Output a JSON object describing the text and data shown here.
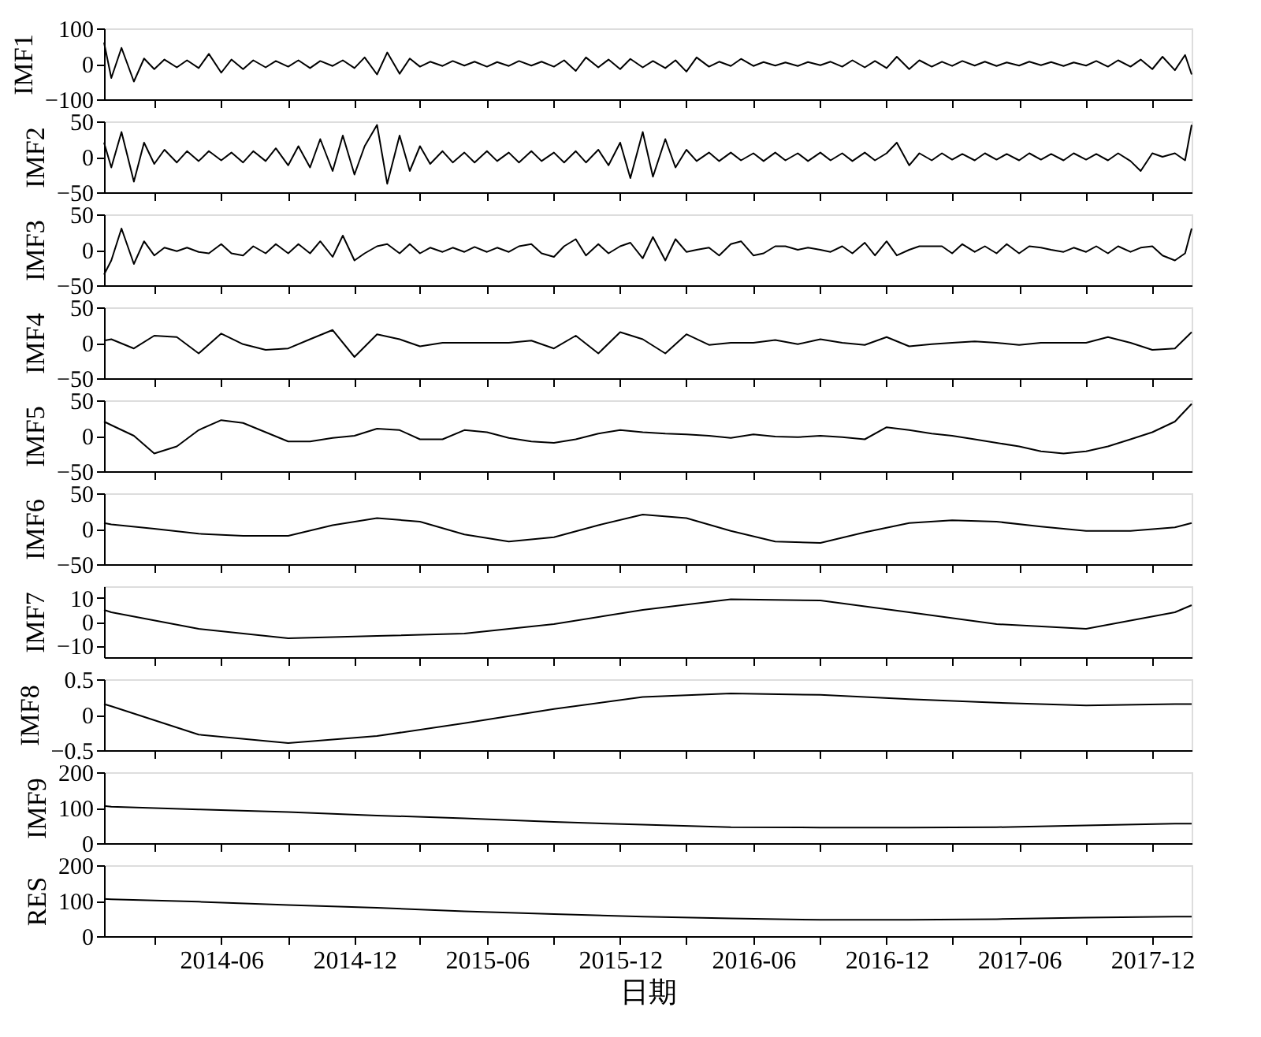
{
  "chart_data": [
    {
      "type": "line",
      "ylabel": "IMF1",
      "tick_labels": "y",
      "xlim": [
        "2013-12-22",
        "2018-01-24"
      ],
      "xticks": [
        {
          "value": "2014-03",
          "label": null
        },
        "2014-06",
        {
          "value": "2014-09",
          "label": null
        },
        "2014-12",
        {
          "value": "2015-03",
          "label": null
        },
        "2015-06",
        {
          "value": "2015-09",
          "label": null
        },
        "2015-12",
        {
          "value": "2016-03",
          "label": null
        },
        "2016-06",
        {
          "value": "2016-09",
          "label": null
        },
        "2016-12",
        {
          "value": "2017-03",
          "label": null
        },
        "2017-06",
        {
          "value": "2017-09",
          "label": null
        },
        "2017-12"
      ],
      "ylim": [
        -100,
        100
      ],
      "yticks": [
        -100,
        0,
        100
      ],
      "x": [
        "2013-12-22",
        "2014-01-01",
        "2014-01-15",
        "2014-02-01",
        "2014-02-15",
        "2014-03-01",
        "2014-03-15",
        "2014-04-01",
        "2014-04-15",
        "2014-05-01",
        "2014-05-15",
        "2014-06-01",
        "2014-06-15",
        "2014-07-01",
        "2014-07-15",
        "2014-08-01",
        "2014-08-15",
        "2014-09-01",
        "2014-09-15",
        "2014-10-01",
        "2014-10-15",
        "2014-11-01",
        "2014-11-15",
        "2014-12-01",
        "2014-12-15",
        "2015-01-01",
        "2015-01-15",
        "2015-02-01",
        "2015-02-15",
        "2015-03-01",
        "2015-03-15",
        "2015-04-01",
        "2015-04-15",
        "2015-05-01",
        "2015-05-15",
        "2015-06-01",
        "2015-06-15",
        "2015-07-01",
        "2015-07-15",
        "2015-08-01",
        "2015-08-15",
        "2015-09-01",
        "2015-09-15",
        "2015-10-01",
        "2015-10-15",
        "2015-11-01",
        "2015-11-15",
        "2015-12-01",
        "2015-12-15",
        "2016-01-01",
        "2016-01-15",
        "2016-02-01",
        "2016-02-15",
        "2016-03-01",
        "2016-03-15",
        "2016-04-01",
        "2016-04-15",
        "2016-05-01",
        "2016-05-15",
        "2016-06-01",
        "2016-06-15",
        "2016-07-01",
        "2016-07-15",
        "2016-08-01",
        "2016-08-15",
        "2016-09-01",
        "2016-09-15",
        "2016-10-01",
        "2016-10-15",
        "2016-11-01",
        "2016-11-15",
        "2016-12-01",
        "2016-12-15",
        "2017-01-01",
        "2017-01-15",
        "2017-02-01",
        "2017-02-15",
        "2017-03-01",
        "2017-03-15",
        "2017-04-01",
        "2017-04-15",
        "2017-05-01",
        "2017-05-15",
        "2017-06-01",
        "2017-06-15",
        "2017-07-01",
        "2017-07-15",
        "2017-08-01",
        "2017-08-15",
        "2017-09-01",
        "2017-09-15",
        "2017-10-01",
        "2017-10-15",
        "2017-11-01",
        "2017-11-15",
        "2017-12-01",
        "2017-12-15",
        "2018-01-01",
        "2018-01-15",
        "2018-01-24"
      ],
      "series": [
        {
          "color": "#000000",
          "values": [
            60,
            -40,
            45,
            -50,
            15,
            -15,
            12,
            -10,
            10,
            -12,
            28,
            -25,
            12,
            -15,
            10,
            -10,
            8,
            -8,
            10,
            -12,
            8,
            -6,
            10,
            -12,
            18,
            -30,
            32,
            -28,
            15,
            -8,
            6,
            -6,
            8,
            -5,
            6,
            -8,
            5,
            -6,
            8,
            -5,
            6,
            -8,
            10,
            -20,
            18,
            -10,
            12,
            -15,
            14,
            -10,
            8,
            -12,
            10,
            -22,
            18,
            -8,
            6,
            -6,
            14,
            -6,
            5,
            -5,
            4,
            -6,
            5,
            -4,
            6,
            -8,
            10,
            -10,
            8,
            -12,
            20,
            -15,
            10,
            -8,
            6,
            -6,
            8,
            -5,
            6,
            -6,
            4,
            -5,
            6,
            -4,
            5,
            -6,
            4,
            -5,
            8,
            -8,
            10,
            -8,
            12,
            -15,
            20,
            -18,
            25,
            -30
          ]
        }
      ]
    },
    {
      "type": "line",
      "ylabel": "IMF2",
      "tick_labels": "y",
      "xlim": [
        "2013-12-22",
        "2018-01-24"
      ],
      "xticks": [
        {
          "value": "2014-03",
          "label": null
        },
        "2014-06",
        {
          "value": "2014-09",
          "label": null
        },
        "2014-12",
        {
          "value": "2015-03",
          "label": null
        },
        "2015-06",
        {
          "value": "2015-09",
          "label": null
        },
        "2015-12",
        {
          "value": "2016-03",
          "label": null
        },
        "2016-06",
        {
          "value": "2016-09",
          "label": null
        },
        "2016-12",
        {
          "value": "2017-03",
          "label": null
        },
        "2017-06",
        {
          "value": "2017-09",
          "label": null
        },
        "2017-12"
      ],
      "ylim": [
        -50,
        50
      ],
      "yticks": [
        -50,
        0,
        50
      ],
      "x": [
        "2013-12-22",
        "2014-01-01",
        "2014-01-15",
        "2014-02-01",
        "2014-02-15",
        "2014-03-01",
        "2014-03-15",
        "2014-04-01",
        "2014-04-15",
        "2014-05-01",
        "2014-05-15",
        "2014-06-01",
        "2014-06-15",
        "2014-07-01",
        "2014-07-15",
        "2014-08-01",
        "2014-08-15",
        "2014-09-01",
        "2014-09-15",
        "2014-10-01",
        "2014-10-15",
        "2014-11-01",
        "2014-11-15",
        "2014-12-01",
        "2014-12-15",
        "2015-01-01",
        "2015-01-15",
        "2015-02-01",
        "2015-02-15",
        "2015-03-01",
        "2015-03-15",
        "2015-04-01",
        "2015-04-15",
        "2015-05-01",
        "2015-05-15",
        "2015-06-01",
        "2015-06-15",
        "2015-07-01",
        "2015-07-15",
        "2015-08-01",
        "2015-08-15",
        "2015-09-01",
        "2015-09-15",
        "2015-10-01",
        "2015-10-15",
        "2015-11-01",
        "2015-11-15",
        "2015-12-01",
        "2015-12-15",
        "2016-01-01",
        "2016-01-15",
        "2016-02-01",
        "2016-02-15",
        "2016-03-01",
        "2016-03-15",
        "2016-04-01",
        "2016-04-15",
        "2016-05-01",
        "2016-05-15",
        "2016-06-01",
        "2016-06-15",
        "2016-07-01",
        "2016-07-15",
        "2016-08-01",
        "2016-08-15",
        "2016-09-01",
        "2016-09-15",
        "2016-10-01",
        "2016-10-15",
        "2016-11-01",
        "2016-11-15",
        "2016-12-01",
        "2016-12-15",
        "2017-01-01",
        "2017-01-15",
        "2017-02-01",
        "2017-02-15",
        "2017-03-01",
        "2017-03-15",
        "2017-04-01",
        "2017-04-15",
        "2017-05-01",
        "2017-05-15",
        "2017-06-01",
        "2017-06-15",
        "2017-07-01",
        "2017-07-15",
        "2017-08-01",
        "2017-08-15",
        "2017-09-01",
        "2017-09-15",
        "2017-10-01",
        "2017-10-15",
        "2017-11-01",
        "2017-11-15",
        "2017-12-01",
        "2017-12-15",
        "2018-01-01",
        "2018-01-15",
        "2018-01-24"
      ],
      "series": [
        {
          "color": "#000000",
          "values": [
            20,
            -15,
            35,
            -35,
            20,
            -10,
            10,
            -8,
            8,
            -6,
            8,
            -5,
            6,
            -8,
            8,
            -6,
            12,
            -12,
            15,
            -15,
            25,
            -20,
            30,
            -25,
            15,
            45,
            -38,
            30,
            -20,
            15,
            -10,
            8,
            -8,
            6,
            -8,
            8,
            -6,
            6,
            -8,
            8,
            -6,
            6,
            -8,
            8,
            -8,
            10,
            -12,
            20,
            -30,
            35,
            -28,
            25,
            -15,
            10,
            -6,
            6,
            -6,
            6,
            -5,
            5,
            -6,
            6,
            -5,
            5,
            -6,
            6,
            -5,
            5,
            -6,
            6,
            -5,
            5,
            20,
            -12,
            5,
            -5,
            5,
            -4,
            4,
            -5,
            5,
            -4,
            4,
            -5,
            5,
            -4,
            4,
            -5,
            5,
            -4,
            4,
            -5,
            5,
            -6,
            -20,
            5,
            0,
            5,
            -5,
            45
          ]
        }
      ]
    },
    {
      "type": "line",
      "ylabel": "IMF3",
      "tick_labels": "y",
      "xlim": [
        "2013-12-22",
        "2018-01-24"
      ],
      "xticks": [
        {
          "value": "2014-03",
          "label": null
        },
        "2014-06",
        {
          "value": "2014-09",
          "label": null
        },
        "2014-12",
        {
          "value": "2015-03",
          "label": null
        },
        "2015-06",
        {
          "value": "2015-09",
          "label": null
        },
        "2015-12",
        {
          "value": "2016-03",
          "label": null
        },
        "2016-06",
        {
          "value": "2016-09",
          "label": null
        },
        "2016-12",
        {
          "value": "2017-03",
          "label": null
        },
        "2017-06",
        {
          "value": "2017-09",
          "label": null
        },
        "2017-12"
      ],
      "ylim": [
        -50,
        50
      ],
      "yticks": [
        -50,
        0,
        50
      ],
      "x": [
        "2013-12-22",
        "2014-01-01",
        "2014-01-15",
        "2014-02-01",
        "2014-02-15",
        "2014-03-01",
        "2014-03-15",
        "2014-04-01",
        "2014-04-15",
        "2014-05-01",
        "2014-05-15",
        "2014-06-01",
        "2014-06-15",
        "2014-07-01",
        "2014-07-15",
        "2014-08-01",
        "2014-08-15",
        "2014-09-01",
        "2014-09-15",
        "2014-10-01",
        "2014-10-15",
        "2014-11-01",
        "2014-11-15",
        "2014-12-01",
        "2014-12-15",
        "2015-01-01",
        "2015-01-15",
        "2015-02-01",
        "2015-02-15",
        "2015-03-01",
        "2015-03-15",
        "2015-04-01",
        "2015-04-15",
        "2015-05-01",
        "2015-05-15",
        "2015-06-01",
        "2015-06-15",
        "2015-07-01",
        "2015-07-15",
        "2015-08-01",
        "2015-08-15",
        "2015-09-01",
        "2015-09-15",
        "2015-10-01",
        "2015-10-15",
        "2015-11-01",
        "2015-11-15",
        "2015-12-01",
        "2015-12-15",
        "2016-01-01",
        "2016-01-15",
        "2016-02-01",
        "2016-02-15",
        "2016-03-01",
        "2016-03-15",
        "2016-04-01",
        "2016-04-15",
        "2016-05-01",
        "2016-05-15",
        "2016-06-01",
        "2016-06-15",
        "2016-07-01",
        "2016-07-15",
        "2016-08-01",
        "2016-08-15",
        "2016-09-01",
        "2016-09-15",
        "2016-10-01",
        "2016-10-15",
        "2016-11-01",
        "2016-11-15",
        "2016-12-01",
        "2016-12-15",
        "2017-01-01",
        "2017-01-15",
        "2017-02-01",
        "2017-02-15",
        "2017-03-01",
        "2017-03-15",
        "2017-04-01",
        "2017-04-15",
        "2017-05-01",
        "2017-05-15",
        "2017-06-01",
        "2017-06-15",
        "2017-07-01",
        "2017-07-15",
        "2017-08-01",
        "2017-08-15",
        "2017-09-01",
        "2017-09-15",
        "2017-10-01",
        "2017-10-15",
        "2017-11-01",
        "2017-11-15",
        "2017-12-01",
        "2017-12-15",
        "2018-01-01",
        "2018-01-15",
        "2018-01-24"
      ],
      "series": [
        {
          "color": "#000000",
          "values": [
            -35,
            -15,
            30,
            -20,
            12,
            -8,
            3,
            -2,
            3,
            -3,
            -5,
            8,
            -5,
            -8,
            5,
            -5,
            8,
            -5,
            8,
            -5,
            12,
            -10,
            20,
            -15,
            -5,
            5,
            8,
            -5,
            8,
            -5,
            3,
            -3,
            3,
            -3,
            4,
            -3,
            3,
            -3,
            5,
            8,
            -5,
            -10,
            5,
            15,
            -8,
            8,
            -5,
            5,
            10,
            -12,
            18,
            -15,
            15,
            -3,
            0,
            3,
            -8,
            8,
            12,
            -8,
            -5,
            5,
            5,
            0,
            3,
            0,
            -3,
            5,
            -5,
            10,
            -8,
            12,
            -8,
            0,
            5,
            5,
            5,
            -5,
            8,
            -3,
            5,
            -5,
            8,
            -5,
            5,
            3,
            0,
            -3,
            3,
            -3,
            5,
            -5,
            5,
            -3,
            3,
            5,
            -8,
            -15,
            -5,
            30
          ]
        }
      ]
    },
    {
      "type": "line",
      "ylabel": "IMF4",
      "tick_labels": "y",
      "xlim": [
        "2013-12-22",
        "2018-01-24"
      ],
      "xticks": [
        {
          "value": "2014-03",
          "label": null
        },
        "2014-06",
        {
          "value": "2014-09",
          "label": null
        },
        "2014-12",
        {
          "value": "2015-03",
          "label": null
        },
        "2015-06",
        {
          "value": "2015-09",
          "label": null
        },
        "2015-12",
        {
          "value": "2016-03",
          "label": null
        },
        "2016-06",
        {
          "value": "2016-09",
          "label": null
        },
        "2016-12",
        {
          "value": "2017-03",
          "label": null
        },
        "2017-06",
        {
          "value": "2017-09",
          "label": null
        },
        "2017-12"
      ],
      "ylim": [
        -50,
        50
      ],
      "yticks": [
        -50,
        0,
        50
      ],
      "x": [
        "2013-12-22",
        "2014-01-01",
        "2014-02-01",
        "2014-03-01",
        "2014-04-01",
        "2014-05-01",
        "2014-06-01",
        "2014-07-01",
        "2014-08-01",
        "2014-09-01",
        "2014-10-01",
        "2014-11-01",
        "2014-12-01",
        "2015-01-01",
        "2015-02-01",
        "2015-03-01",
        "2015-04-01",
        "2015-05-01",
        "2015-06-01",
        "2015-07-01",
        "2015-08-01",
        "2015-09-01",
        "2015-10-01",
        "2015-11-01",
        "2015-12-01",
        "2016-01-01",
        "2016-02-01",
        "2016-03-01",
        "2016-04-01",
        "2016-05-01",
        "2016-06-01",
        "2016-07-01",
        "2016-08-01",
        "2016-09-01",
        "2016-10-01",
        "2016-11-01",
        "2016-12-01",
        "2017-01-01",
        "2017-02-01",
        "2017-03-01",
        "2017-04-01",
        "2017-05-01",
        "2017-06-01",
        "2017-07-01",
        "2017-08-01",
        "2017-09-01",
        "2017-10-01",
        "2017-11-01",
        "2017-12-01",
        "2018-01-01",
        "2018-01-24"
      ],
      "series": [
        {
          "color": "#000000",
          "values": [
            3,
            5,
            -8,
            10,
            8,
            -15,
            13,
            -2,
            -10,
            -8,
            5,
            18,
            -20,
            12,
            5,
            -5,
            0,
            0,
            0,
            0,
            3,
            -8,
            10,
            -15,
            15,
            5,
            -15,
            12,
            -3,
            0,
            0,
            4,
            -2,
            5,
            0,
            -3,
            8,
            -5,
            -2,
            0,
            2,
            0,
            -3,
            0,
            0,
            0,
            8,
            0,
            -10,
            -8,
            15
          ]
        }
      ]
    },
    {
      "type": "line",
      "ylabel": "IMF5",
      "tick_labels": "y",
      "xlim": [
        "2013-12-22",
        "2018-01-24"
      ],
      "xticks": [
        {
          "value": "2014-03",
          "label": null
        },
        "2014-06",
        {
          "value": "2014-09",
          "label": null
        },
        "2014-12",
        {
          "value": "2015-03",
          "label": null
        },
        "2015-06",
        {
          "value": "2015-09",
          "label": null
        },
        "2015-12",
        {
          "value": "2016-03",
          "label": null
        },
        "2016-06",
        {
          "value": "2016-09",
          "label": null
        },
        "2016-12",
        {
          "value": "2017-03",
          "label": null
        },
        "2017-06",
        {
          "value": "2017-09",
          "label": null
        },
        "2017-12"
      ],
      "ylim": [
        -50,
        50
      ],
      "yticks": [
        -50,
        0,
        50
      ],
      "x": [
        "2013-12-22",
        "2014-01-01",
        "2014-02-01",
        "2014-03-01",
        "2014-04-01",
        "2014-05-01",
        "2014-06-01",
        "2014-07-01",
        "2014-08-01",
        "2014-09-01",
        "2014-10-01",
        "2014-11-01",
        "2014-12-01",
        "2015-01-01",
        "2015-02-01",
        "2015-03-01",
        "2015-04-01",
        "2015-05-01",
        "2015-06-01",
        "2015-07-01",
        "2015-08-01",
        "2015-09-01",
        "2015-10-01",
        "2015-11-01",
        "2015-12-01",
        "2016-01-01",
        "2016-02-01",
        "2016-03-01",
        "2016-04-01",
        "2016-05-01",
        "2016-06-01",
        "2016-07-01",
        "2016-08-01",
        "2016-09-01",
        "2016-10-01",
        "2016-11-01",
        "2016-12-01",
        "2017-01-01",
        "2017-02-01",
        "2017-03-01",
        "2017-04-01",
        "2017-05-01",
        "2017-06-01",
        "2017-07-01",
        "2017-08-01",
        "2017-09-01",
        "2017-10-01",
        "2017-11-01",
        "2017-12-01",
        "2018-01-01",
        "2018-01-24"
      ],
      "series": [
        {
          "color": "#000000",
          "values": [
            20,
            15,
            0,
            -25,
            -15,
            8,
            22,
            18,
            5,
            -8,
            -8,
            -3,
            0,
            10,
            8,
            -5,
            -5,
            8,
            5,
            -3,
            -8,
            -10,
            -5,
            3,
            8,
            5,
            3,
            2,
            0,
            -3,
            2,
            -1,
            -2,
            0,
            -2,
            -5,
            12,
            8,
            3,
            0,
            -5,
            -10,
            -15,
            -22,
            -25,
            -22,
            -15,
            -5,
            5,
            20,
            45
          ]
        }
      ]
    },
    {
      "type": "line",
      "ylabel": "IMF6",
      "tick_labels": "y",
      "xlim": [
        "2013-12-22",
        "2018-01-24"
      ],
      "xticks": [
        {
          "value": "2014-03",
          "label": null
        },
        "2014-06",
        {
          "value": "2014-09",
          "label": null
        },
        "2014-12",
        {
          "value": "2015-03",
          "label": null
        },
        "2015-06",
        {
          "value": "2015-09",
          "label": null
        },
        "2015-12",
        {
          "value": "2016-03",
          "label": null
        },
        "2016-06",
        {
          "value": "2016-09",
          "label": null
        },
        "2016-12",
        {
          "value": "2017-03",
          "label": null
        },
        "2017-06",
        {
          "value": "2017-09",
          "label": null
        },
        "2017-12"
      ],
      "ylim": [
        -50,
        50
      ],
      "yticks": [
        -50,
        0,
        50
      ],
      "x": [
        "2013-12-22",
        "2014-01-01",
        "2014-03-01",
        "2014-05-01",
        "2014-07-01",
        "2014-09-01",
        "2014-11-01",
        "2015-01-01",
        "2015-03-01",
        "2015-05-01",
        "2015-07-01",
        "2015-09-01",
        "2015-11-01",
        "2016-01-01",
        "2016-03-01",
        "2016-05-01",
        "2016-07-01",
        "2016-09-01",
        "2016-11-01",
        "2017-01-01",
        "2017-03-01",
        "2017-05-01",
        "2017-07-01",
        "2017-09-01",
        "2017-11-01",
        "2018-01-01",
        "2018-01-24"
      ],
      "series": [
        {
          "color": "#000000",
          "values": [
            8,
            6,
            0,
            -7,
            -10,
            -10,
            5,
            15,
            10,
            -8,
            -18,
            -12,
            5,
            20,
            15,
            -3,
            -18,
            -20,
            -5,
            8,
            12,
            10,
            3,
            -3,
            -3,
            2,
            8
          ]
        }
      ]
    },
    {
      "type": "line",
      "ylabel": "IMF7",
      "tick_labels": "y",
      "xlim": [
        "2013-12-22",
        "2018-01-24"
      ],
      "xticks": [
        {
          "value": "2014-03",
          "label": null
        },
        "2014-06",
        {
          "value": "2014-09",
          "label": null
        },
        "2014-12",
        {
          "value": "2015-03",
          "label": null
        },
        "2015-06",
        {
          "value": "2015-09",
          "label": null
        },
        "2015-12",
        {
          "value": "2016-03",
          "label": null
        },
        "2016-06",
        {
          "value": "2016-09",
          "label": null
        },
        "2016-12",
        {
          "value": "2017-03",
          "label": null
        },
        "2017-06",
        {
          "value": "2017-09",
          "label": null
        },
        "2017-12"
      ],
      "ylim": [
        -15,
        15
      ],
      "yticks": [
        -10,
        0,
        10
      ],
      "x": [
        "2013-12-22",
        "2014-01-01",
        "2014-05-01",
        "2014-09-01",
        "2015-01-01",
        "2015-05-01",
        "2015-09-01",
        "2016-01-01",
        "2016-05-01",
        "2016-09-01",
        "2017-01-01",
        "2017-05-01",
        "2017-09-01",
        "2018-01-01",
        "2018-01-24"
      ],
      "series": [
        {
          "color": "#000000",
          "values": [
            5,
            4,
            -3,
            -7,
            -6,
            -5,
            -1,
            5,
            9.5,
            9,
            4,
            -1,
            -3,
            4,
            7
          ]
        }
      ]
    },
    {
      "type": "line",
      "ylabel": "IMF8",
      "tick_labels": "y",
      "xlim": [
        "2013-12-22",
        "2018-01-24"
      ],
      "xticks": [
        {
          "value": "2014-03",
          "label": null
        },
        "2014-06",
        {
          "value": "2014-09",
          "label": null
        },
        "2014-12",
        {
          "value": "2015-03",
          "label": null
        },
        "2015-06",
        {
          "value": "2015-09",
          "label": null
        },
        "2015-12",
        {
          "value": "2016-03",
          "label": null
        },
        "2016-06",
        {
          "value": "2016-09",
          "label": null
        },
        "2016-12",
        {
          "value": "2017-03",
          "label": null
        },
        "2017-06",
        {
          "value": "2017-09",
          "label": null
        },
        "2017-12"
      ],
      "ylim": [
        -0.5,
        0.5
      ],
      "yticks": [
        -0.5,
        0,
        0.5
      ],
      "x": [
        "2013-12-22",
        "2014-01-01",
        "2014-05-01",
        "2014-09-01",
        "2015-01-01",
        "2015-05-01",
        "2015-09-01",
        "2016-01-01",
        "2016-05-01",
        "2016-09-01",
        "2017-01-01",
        "2017-05-01",
        "2017-09-01",
        "2018-01-01",
        "2018-01-24"
      ],
      "series": [
        {
          "color": "#000000",
          "values": [
            0.15,
            0.12,
            -0.28,
            -0.4,
            -0.3,
            -0.12,
            0.08,
            0.25,
            0.3,
            0.28,
            0.22,
            0.17,
            0.13,
            0.15,
            0.15
          ]
        }
      ]
    },
    {
      "type": "line",
      "ylabel": "IMF9",
      "tick_labels": "y",
      "xlim": [
        "2013-12-22",
        "2018-01-24"
      ],
      "xticks": [
        {
          "value": "2014-03",
          "label": null
        },
        "2014-06",
        {
          "value": "2014-09",
          "label": null
        },
        "2014-12",
        {
          "value": "2015-03",
          "label": null
        },
        "2015-06",
        {
          "value": "2015-09",
          "label": null
        },
        "2015-12",
        {
          "value": "2016-03",
          "label": null
        },
        "2016-06",
        {
          "value": "2016-09",
          "label": null
        },
        "2016-12",
        {
          "value": "2017-03",
          "label": null
        },
        "2017-06",
        {
          "value": "2017-09",
          "label": null
        },
        "2017-12"
      ],
      "ylim": [
        0,
        200
      ],
      "yticks": [
        0,
        100,
        200
      ],
      "x": [
        "2013-12-22",
        "2014-01-01",
        "2014-05-01",
        "2014-09-01",
        "2015-01-01",
        "2015-05-01",
        "2015-09-01",
        "2016-01-01",
        "2016-05-01",
        "2016-09-01",
        "2017-01-01",
        "2017-05-01",
        "2017-09-01",
        "2018-01-01",
        "2018-01-24"
      ],
      "series": [
        {
          "color": "#000000",
          "values": [
            105,
            103,
            95,
            88,
            78,
            70,
            60,
            52,
            45,
            44,
            44,
            45,
            50,
            55,
            55
          ]
        }
      ]
    },
    {
      "type": "line",
      "ylabel": "RES",
      "xlabel": "日期",
      "xlim": [
        "2013-12-22",
        "2018-01-24"
      ],
      "xticks": [
        {
          "value": "2014-03",
          "label": null
        },
        "2014-06",
        {
          "value": "2014-09",
          "label": null
        },
        "2014-12",
        {
          "value": "2015-03",
          "label": null
        },
        "2015-06",
        {
          "value": "2015-09",
          "label": null
        },
        "2015-12",
        {
          "value": "2016-03",
          "label": null
        },
        "2016-06",
        {
          "value": "2016-09",
          "label": null
        },
        "2016-12",
        {
          "value": "2017-03",
          "label": null
        },
        "2017-06",
        {
          "value": "2017-09",
          "label": null
        },
        "2017-12"
      ],
      "ylim": [
        0,
        200
      ],
      "yticks": [
        0,
        100,
        200
      ],
      "x": [
        "2013-12-22",
        "2014-01-01",
        "2014-05-01",
        "2014-09-01",
        "2015-01-01",
        "2015-05-01",
        "2015-09-01",
        "2016-01-01",
        "2016-05-01",
        "2016-09-01",
        "2017-01-01",
        "2017-05-01",
        "2017-09-01",
        "2018-01-01",
        "2018-01-24"
      ],
      "series": [
        {
          "color": "#000000",
          "values": [
            105,
            104,
            97,
            88,
            80,
            70,
            62,
            55,
            50,
            46,
            46,
            48,
            52,
            55,
            55
          ]
        }
      ]
    }
  ]
}
